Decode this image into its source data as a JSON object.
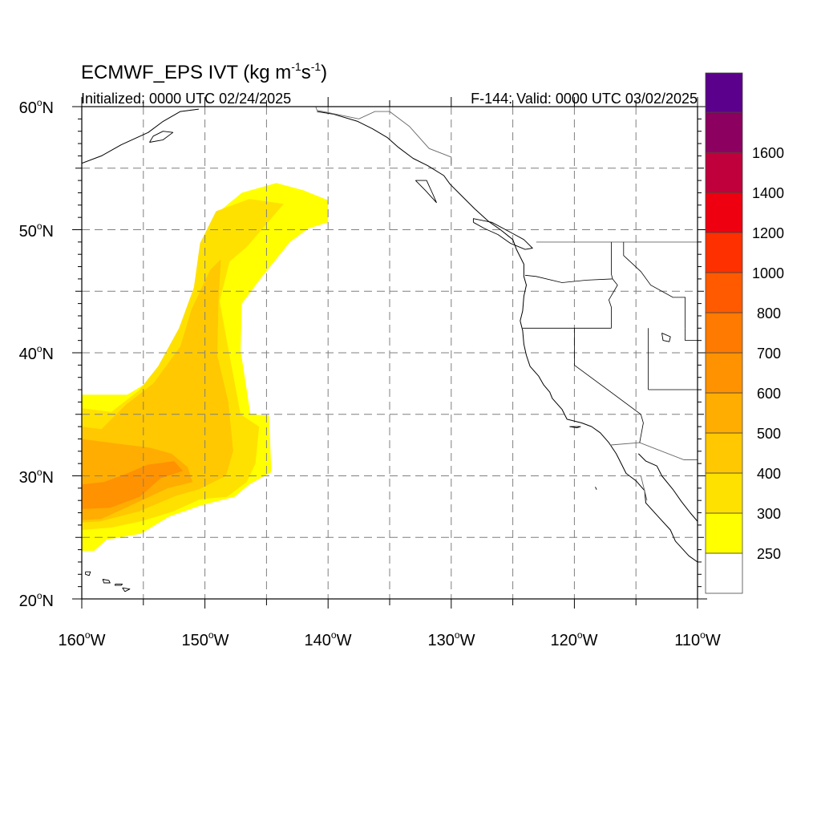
{
  "title": {
    "main": "ECMWF_EPS IVT (kg m",
    "sup1": "-1",
    "mid": "s",
    "sup2": "-1",
    "close": ")"
  },
  "subtitle": {
    "left": "Initialized: 0000 UTC 02/24/2025",
    "right": "F-144: Valid: 0000 UTC 03/02/2025"
  },
  "lat_labels": [
    {
      "lat": 60,
      "num": "60",
      "deg": "o",
      "hem": "N"
    },
    {
      "lat": 50,
      "num": "50",
      "deg": "o",
      "hem": "N"
    },
    {
      "lat": 40,
      "num": "40",
      "deg": "o",
      "hem": "N"
    },
    {
      "lat": 30,
      "num": "30",
      "deg": "o",
      "hem": "N"
    },
    {
      "lat": 20,
      "num": "20",
      "deg": "o",
      "hem": "N"
    }
  ],
  "lon_labels": [
    {
      "lon": -160,
      "num": "160",
      "deg": "o",
      "hem": "W"
    },
    {
      "lon": -150,
      "num": "150",
      "deg": "o",
      "hem": "W"
    },
    {
      "lon": -140,
      "num": "140",
      "deg": "o",
      "hem": "W"
    },
    {
      "lon": -130,
      "num": "130",
      "deg": "o",
      "hem": "W"
    },
    {
      "lon": -120,
      "num": "120",
      "deg": "o",
      "hem": "W"
    },
    {
      "lon": -110,
      "num": "110",
      "deg": "o",
      "hem": "W"
    }
  ],
  "map_extent": {
    "lon_min": -160,
    "lon_max": -110,
    "lat_min": 20,
    "lat_max": 60
  },
  "grid_lons": [
    -155,
    -150,
    -145,
    -140,
    -135,
    -130,
    -125,
    -120,
    -115
  ],
  "grid_lats": [
    25,
    30,
    35,
    40,
    45,
    50,
    55
  ],
  "colorbar": {
    "labels": [
      "250",
      "300",
      "400",
      "500",
      "600",
      "700",
      "800",
      "1000",
      "1200",
      "1400",
      "1600"
    ],
    "colors": [
      "#ffffff",
      "#ffff00",
      "#ffe100",
      "#ffc800",
      "#ffad00",
      "#ff9200",
      "#ff7a00",
      "#ff5a00",
      "#ff3000",
      "#ee0010",
      "#c0003c",
      "#8c0060",
      "#5a008c"
    ]
  },
  "ivt_layers": [
    {
      "level": 1,
      "color": "#ffff00",
      "outline": [
        [
          -160,
          23.9
        ],
        [
          -160,
          36.6
        ],
        [
          -156.3,
          36.6
        ],
        [
          -154.3,
          37.8
        ],
        [
          -151.6,
          40.6
        ],
        [
          -150.3,
          45.0
        ],
        [
          -149.9,
          49.2
        ],
        [
          -148.7,
          51.6
        ],
        [
          -147.0,
          53.0
        ],
        [
          -144.2,
          53.8
        ],
        [
          -142.0,
          53.2
        ],
        [
          -140.0,
          52.4
        ],
        [
          -140.0,
          50.6
        ],
        [
          -141.6,
          50.1
        ],
        [
          -143.1,
          49.0
        ],
        [
          -145.5,
          46.0
        ],
        [
          -147.0,
          44.0
        ],
        [
          -147.1,
          40.2
        ],
        [
          -146.3,
          35.0
        ],
        [
          -144.8,
          34.9
        ],
        [
          -144.6,
          30.3
        ],
        [
          -146.4,
          29.3
        ],
        [
          -147.6,
          28.3
        ],
        [
          -150.3,
          27.6
        ],
        [
          -152.9,
          26.7
        ],
        [
          -155.2,
          25.3
        ],
        [
          -158.0,
          24.8
        ],
        [
          -159.0,
          23.9
        ]
      ]
    },
    {
      "level": 2,
      "color": "#ffe100",
      "outline": [
        [
          -160,
          25.6
        ],
        [
          -160,
          35.5
        ],
        [
          -157.6,
          35.2
        ],
        [
          -155.4,
          36.9
        ],
        [
          -153.8,
          38.9
        ],
        [
          -152.1,
          42.0
        ],
        [
          -150.9,
          45.3
        ],
        [
          -150.4,
          48.9
        ],
        [
          -149.1,
          51.5
        ],
        [
          -146.4,
          52.5
        ],
        [
          -143.6,
          52.1
        ],
        [
          -145.4,
          50.0
        ],
        [
          -146.6,
          48.6
        ],
        [
          -148.0,
          47.4
        ],
        [
          -148.8,
          44.2
        ],
        [
          -148.1,
          40.3
        ],
        [
          -147.1,
          35.0
        ],
        [
          -145.6,
          34.0
        ],
        [
          -145.9,
          31.0
        ],
        [
          -146.6,
          29.5
        ],
        [
          -148.2,
          28.3
        ],
        [
          -150.4,
          28.1
        ],
        [
          -152.6,
          27.1
        ],
        [
          -155.2,
          26.3
        ],
        [
          -157.6,
          25.8
        ]
      ]
    },
    {
      "level": 3,
      "color": "#ffc800",
      "outline": [
        [
          -160,
          26.2
        ],
        [
          -160,
          34.0
        ],
        [
          -158.4,
          33.8
        ],
        [
          -156.4,
          35.8
        ],
        [
          -154.2,
          37.5
        ],
        [
          -152.0,
          40.5
        ],
        [
          -151.1,
          43.5
        ],
        [
          -149.6,
          46.7
        ],
        [
          -148.7,
          47.6
        ],
        [
          -148.9,
          44.3
        ],
        [
          -149.0,
          39.8
        ],
        [
          -148.1,
          36.0
        ],
        [
          -147.7,
          32.0
        ],
        [
          -148.3,
          30.0
        ],
        [
          -150.5,
          28.9
        ],
        [
          -152.3,
          28.4
        ],
        [
          -155.4,
          27.1
        ],
        [
          -158.5,
          26.3
        ]
      ]
    },
    {
      "level": 4,
      "color": "#ffad00",
      "outline": [
        [
          -160,
          26.4
        ],
        [
          -160,
          33.0
        ],
        [
          -157.0,
          32.6
        ],
        [
          -154.5,
          32.3
        ],
        [
          -152.7,
          31.8
        ],
        [
          -151.4,
          30.7
        ],
        [
          -151.0,
          29.5
        ],
        [
          -153.0,
          29.0
        ],
        [
          -155.8,
          27.7
        ],
        [
          -158.4,
          26.5
        ]
      ]
    },
    {
      "level": 5,
      "color": "#ff9200",
      "outline": [
        [
          -160,
          27.3
        ],
        [
          -160,
          29.3
        ],
        [
          -158.2,
          29.5
        ],
        [
          -156.3,
          30.2
        ],
        [
          -154.7,
          30.9
        ],
        [
          -152.5,
          31.2
        ],
        [
          -151.8,
          30.4
        ],
        [
          -153.6,
          29.8
        ],
        [
          -155.3,
          28.3
        ],
        [
          -157.7,
          27.4
        ]
      ]
    }
  ],
  "coastlines": [
    {
      "name": "north-america-west-coast",
      "points": [
        [
          -140.9,
          59.6
        ],
        [
          -139.6,
          59.4
        ],
        [
          -137.6,
          58.8
        ],
        [
          -136.4,
          58.2
        ],
        [
          -135.2,
          57.5
        ],
        [
          -134.3,
          56.7
        ],
        [
          -133.1,
          55.8
        ],
        [
          -131.9,
          55.2
        ],
        [
          -130.6,
          54.4
        ],
        [
          -130.1,
          53.7
        ],
        [
          -129.2,
          52.8
        ],
        [
          -128.1,
          51.7
        ],
        [
          -127.0,
          50.7
        ],
        [
          -126.0,
          50.0
        ],
        [
          -125.0,
          49.2
        ],
        [
          -124.7,
          48.4
        ],
        [
          -124.1,
          47.2
        ],
        [
          -124.1,
          46.2
        ],
        [
          -123.9,
          45.5
        ],
        [
          -124.1,
          44.6
        ],
        [
          -124.2,
          43.4
        ],
        [
          -124.4,
          42.6
        ],
        [
          -124.2,
          41.8
        ],
        [
          -124.1,
          40.7
        ],
        [
          -123.9,
          39.8
        ],
        [
          -123.6,
          38.9
        ],
        [
          -122.9,
          38.1
        ],
        [
          -122.5,
          37.4
        ],
        [
          -122.0,
          36.8
        ],
        [
          -121.8,
          36.3
        ],
        [
          -121.0,
          35.4
        ],
        [
          -120.6,
          34.6
        ],
        [
          -119.4,
          34.3
        ],
        [
          -118.6,
          34.0
        ],
        [
          -117.9,
          33.5
        ],
        [
          -117.2,
          32.7
        ],
        [
          -116.6,
          31.8
        ],
        [
          -116.2,
          31.0
        ],
        [
          -115.8,
          30.2
        ],
        [
          -115.0,
          29.6
        ],
        [
          -114.3,
          28.8
        ],
        [
          -114.2,
          27.8
        ],
        [
          -113.2,
          26.7
        ],
        [
          -112.2,
          25.6
        ],
        [
          -111.8,
          24.7
        ],
        [
          -110.7,
          23.5
        ],
        [
          -110.0,
          23.0
        ]
      ]
    },
    {
      "name": "gulf-of-california-east",
      "points": [
        [
          -114.8,
          31.8
        ],
        [
          -114.2,
          31.2
        ],
        [
          -113.3,
          30.8
        ],
        [
          -112.9,
          30.0
        ],
        [
          -112.0,
          28.9
        ],
        [
          -111.3,
          27.9
        ],
        [
          -110.6,
          27.0
        ],
        [
          -110.0,
          26.3
        ]
      ]
    },
    {
      "name": "alaska-peninsula",
      "points": [
        [
          -160,
          55.4
        ],
        [
          -158.4,
          56.0
        ],
        [
          -156.8,
          56.9
        ],
        [
          -154.6,
          57.9
        ],
        [
          -153.4,
          58.8
        ],
        [
          -152.0,
          59.6
        ],
        [
          -150.5,
          59.8
        ]
      ]
    },
    {
      "name": "vancouver-island",
      "points": [
        [
          -128.2,
          50.6
        ],
        [
          -127.3,
          50.1
        ],
        [
          -126.2,
          49.6
        ],
        [
          -125.2,
          48.9
        ],
        [
          -124.0,
          48.4
        ],
        [
          -123.4,
          48.5
        ],
        [
          -124.1,
          49.2
        ],
        [
          -125.2,
          49.8
        ],
        [
          -126.7,
          50.6
        ],
        [
          -128.2,
          50.9
        ],
        [
          -128.2,
          50.6
        ]
      ]
    },
    {
      "name": "haida-gwaii",
      "points": [
        [
          -132.9,
          54.0
        ],
        [
          -132.1,
          53.2
        ],
        [
          -131.2,
          52.2
        ],
        [
          -131.5,
          52.9
        ],
        [
          -132.0,
          54.0
        ],
        [
          -132.9,
          54.0
        ]
      ]
    },
    {
      "name": "kodiak",
      "points": [
        [
          -154.5,
          57.1
        ],
        [
          -153.4,
          57.3
        ],
        [
          -152.6,
          57.9
        ],
        [
          -153.4,
          58.0
        ],
        [
          -154.2,
          57.6
        ],
        [
          -154.5,
          57.1
        ]
      ]
    },
    {
      "name": "hawaii-big-island",
      "points": [
        [
          -155.9,
          19.9
        ],
        [
          -155.2,
          19.8
        ],
        [
          -154.9,
          19.5
        ],
        [
          -155.6,
          19.0
        ],
        [
          -155.9,
          19.6
        ],
        [
          -155.9,
          19.9
        ]
      ]
    },
    {
      "name": "hawaii-maui",
      "points": [
        [
          -156.7,
          20.9
        ],
        [
          -156.1,
          20.8
        ],
        [
          -156.5,
          20.6
        ],
        [
          -156.7,
          20.9
        ]
      ]
    },
    {
      "name": "hawaii-oahu",
      "points": [
        [
          -158.3,
          21.6
        ],
        [
          -157.8,
          21.5
        ],
        [
          -157.7,
          21.3
        ],
        [
          -158.2,
          21.3
        ],
        [
          -158.3,
          21.6
        ]
      ]
    },
    {
      "name": "hawaii-kauai",
      "points": [
        [
          -159.7,
          22.2
        ],
        [
          -159.3,
          22.2
        ],
        [
          -159.4,
          21.9
        ],
        [
          -159.7,
          22.0
        ],
        [
          -159.7,
          22.2
        ]
      ]
    },
    {
      "name": "hawaii-molokai",
      "points": [
        [
          -157.3,
          21.2
        ],
        [
          -156.7,
          21.2
        ],
        [
          -156.8,
          21.1
        ],
        [
          -157.3,
          21.1
        ],
        [
          -157.3,
          21.2
        ]
      ]
    },
    {
      "name": "channel-islands",
      "points": [
        [
          -120.4,
          34.0
        ],
        [
          -119.5,
          34.0
        ],
        [
          -119.8,
          33.9
        ],
        [
          -120.4,
          34.0
        ]
      ]
    },
    {
      "name": "guadalupe-island",
      "points": [
        [
          -118.3,
          29.1
        ],
        [
          -118.2,
          28.9
        ],
        [
          -118.3,
          29.1
        ]
      ]
    },
    {
      "name": "great-salt-lake",
      "points": [
        [
          -112.9,
          41.6
        ],
        [
          -112.2,
          41.3
        ],
        [
          -112.3,
          40.9
        ],
        [
          -112.8,
          41.0
        ],
        [
          -112.9,
          41.6
        ]
      ]
    }
  ],
  "borders": [
    {
      "name": "us-canada-border",
      "points": [
        [
          -123.1,
          49.0
        ],
        [
          -110,
          49.0
        ]
      ]
    },
    {
      "name": "alaska-canada-border",
      "points": [
        [
          -141.0,
          60.0
        ],
        [
          -140.9,
          59.7
        ],
        [
          -137.5,
          59.0
        ],
        [
          -136.2,
          59.6
        ],
        [
          -135.0,
          59.6
        ],
        [
          -133.4,
          58.4
        ],
        [
          -131.8,
          56.6
        ],
        [
          -130.0,
          55.9
        ],
        [
          -130.0,
          55.3
        ]
      ]
    },
    {
      "name": "us-mexico-border",
      "points": [
        [
          -117.1,
          32.5
        ],
        [
          -114.7,
          32.7
        ],
        [
          -111.1,
          31.3
        ],
        [
          -110,
          31.3
        ]
      ]
    },
    {
      "name": "baja-border",
      "points": [
        [
          -114.6,
          30.0
        ],
        [
          -114.1,
          28.0
        ]
      ]
    }
  ],
  "state_lines": [
    {
      "name": "washington-oregon",
      "points": [
        [
          -124.0,
          46.3
        ],
        [
          -123.1,
          46.2
        ],
        [
          -121.0,
          45.7
        ],
        [
          -119.0,
          45.9
        ],
        [
          -116.9,
          46.0
        ]
      ]
    },
    {
      "name": "oregon-california",
      "points": [
        [
          -124.2,
          42.0
        ],
        [
          -117.0,
          42.0
        ]
      ]
    },
    {
      "name": "washington-idaho",
      "points": [
        [
          -117.0,
          49.0
        ],
        [
          -117.0,
          46.4
        ],
        [
          -116.9,
          46.0
        ]
      ]
    },
    {
      "name": "oregon-idaho",
      "points": [
        [
          -116.9,
          46.0
        ],
        [
          -116.5,
          45.5
        ],
        [
          -117.2,
          44.3
        ],
        [
          -117.0,
          43.7
        ],
        [
          -117.0,
          42.0
        ]
      ]
    },
    {
      "name": "california-nevada",
      "points": [
        [
          -120.0,
          42.0
        ],
        [
          -120.0,
          39.0
        ],
        [
          -114.6,
          35.0
        ]
      ]
    },
    {
      "name": "nevada-utah",
      "points": [
        [
          -114.0,
          42.0
        ],
        [
          -114.0,
          37.0
        ]
      ]
    },
    {
      "name": "idaho-montana",
      "points": [
        [
          -116.0,
          49.0
        ],
        [
          -116.0,
          47.9
        ],
        [
          -114.6,
          46.6
        ],
        [
          -113.8,
          45.5
        ],
        [
          -112.0,
          44.5
        ],
        [
          -111.0,
          44.5
        ],
        [
          -111.0,
          42.0
        ]
      ]
    },
    {
      "name": "wyoming-utah",
      "points": [
        [
          -111.0,
          42.0
        ],
        [
          -111.0,
          41.0
        ],
        [
          -110,
          41.0
        ]
      ]
    },
    {
      "name": "arizona-utah",
      "points": [
        [
          -114.0,
          37.0
        ],
        [
          -110,
          37.0
        ]
      ]
    },
    {
      "name": "arizona-california",
      "points": [
        [
          -114.6,
          35.0
        ],
        [
          -114.4,
          34.3
        ],
        [
          -114.7,
          32.7
        ]
      ]
    }
  ]
}
